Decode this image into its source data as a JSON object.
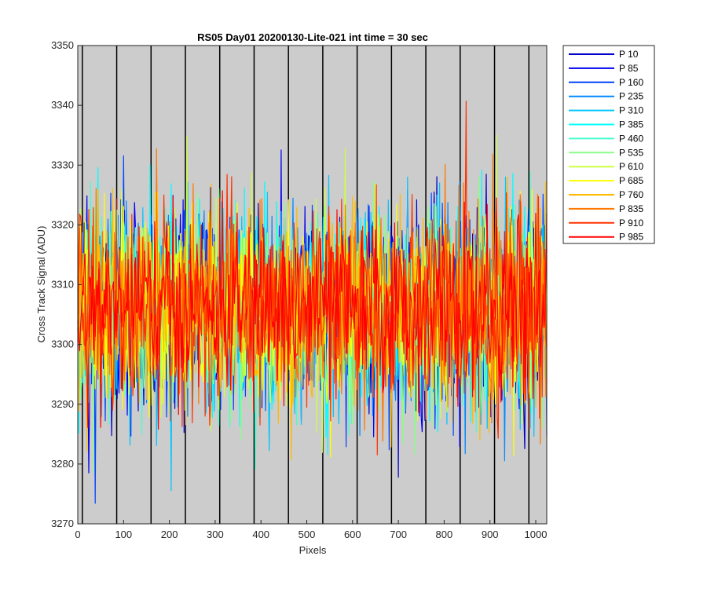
{
  "chart_data": {
    "type": "line",
    "title": "RS05 Day01 20200130-Lite-021 int time = 30 sec",
    "xlabel": "Pixels",
    "ylabel": "Cross Track Signal (ADU)",
    "xlim": [
      0,
      1024
    ],
    "ylim": [
      3270,
      3350
    ],
    "xticks": [
      0,
      100,
      200,
      300,
      400,
      500,
      600,
      700,
      800,
      900,
      1000
    ],
    "yticks": [
      3270,
      3280,
      3290,
      3300,
      3310,
      3320,
      3330,
      3340,
      3350
    ],
    "x_tick_labels": [
      "0",
      "100",
      "200",
      "300",
      "400",
      "500",
      "600",
      "700",
      "800",
      "900",
      "1000"
    ],
    "y_tick_labels": [
      "3270",
      "3280",
      "3290",
      "3300",
      "3310",
      "3320",
      "3330",
      "3340",
      "3350"
    ],
    "vertical_lines_x": [
      10,
      85,
      160,
      235,
      310,
      385,
      460,
      535,
      610,
      685,
      760,
      835,
      910,
      985
    ],
    "background": "#cccccc",
    "grid": false,
    "legend_position": "outside-right",
    "series": [
      {
        "name": "P 10",
        "color": "#0000c8",
        "mean": 3306.0,
        "noise": 9
      },
      {
        "name": "P 85",
        "color": "#0000f0",
        "mean": 3306.0,
        "noise": 9
      },
      {
        "name": "P 160",
        "color": "#0044ff",
        "mean": 3306.0,
        "noise": 9
      },
      {
        "name": "P 235",
        "color": "#0088ff",
        "mean": 3306.0,
        "noise": 9
      },
      {
        "name": "P 310",
        "color": "#00c4ff",
        "mean": 3306.0,
        "noise": 9
      },
      {
        "name": "P 385",
        "color": "#00ffff",
        "mean": 3306.0,
        "noise": 9
      },
      {
        "name": "P 460",
        "color": "#44ffcc",
        "mean": 3306.0,
        "noise": 9
      },
      {
        "name": "P 535",
        "color": "#88ff88",
        "mean": 3306.0,
        "noise": 9
      },
      {
        "name": "P 610",
        "color": "#ccff44",
        "mean": 3306.0,
        "noise": 9
      },
      {
        "name": "P 685",
        "color": "#ffff00",
        "mean": 3306.0,
        "noise": 9
      },
      {
        "name": "P 760",
        "color": "#ffbb00",
        "mean": 3306.0,
        "noise": 9
      },
      {
        "name": "P 835",
        "color": "#ff7700",
        "mean": 3306.0,
        "noise": 9
      },
      {
        "name": "P 910",
        "color": "#ff3300",
        "mean": 3306.0,
        "noise": 9
      },
      {
        "name": "P 985",
        "color": "#ff0000",
        "mean": 3306.0,
        "noise": 8
      }
    ]
  }
}
